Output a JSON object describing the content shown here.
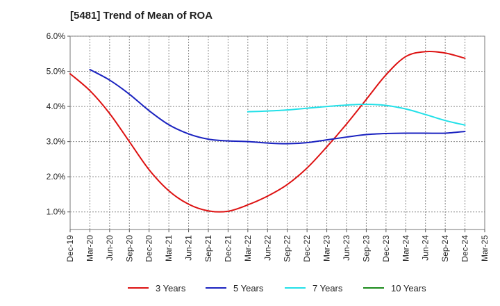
{
  "chart_data": {
    "type": "line",
    "title": "[5481]  Trend of Mean of ROA",
    "xlabel": "",
    "ylabel": "",
    "x_tick_labels": [
      "Dec-19",
      "Mar-20",
      "Jun-20",
      "Sep-20",
      "Dec-20",
      "Mar-21",
      "Jun-21",
      "Sep-21",
      "Dec-21",
      "Mar-22",
      "Jun-22",
      "Sep-22",
      "Dec-22",
      "Mar-23",
      "Jun-23",
      "Sep-23",
      "Dec-23",
      "Mar-24",
      "Jun-24",
      "Sep-24",
      "Dec-24",
      "Mar-25"
    ],
    "y_ticks": [
      "1.0%",
      "2.0%",
      "3.0%",
      "4.0%",
      "5.0%",
      "6.0%"
    ],
    "ylim": [
      0.5,
      6.0
    ],
    "grid": true,
    "legend_position": "bottom",
    "series": [
      {
        "name": "3 Years",
        "color": "#dd1111",
        "values": [
          4.93,
          4.45,
          3.8,
          3.0,
          2.2,
          1.6,
          1.22,
          1.03,
          1.02,
          1.2,
          1.45,
          1.78,
          2.25,
          2.85,
          3.5,
          4.2,
          4.9,
          5.42,
          5.56,
          5.52,
          5.37,
          null
        ]
      },
      {
        "name": "5 Years",
        "color": "#1a22c0",
        "values": [
          null,
          5.05,
          4.75,
          4.35,
          3.88,
          3.48,
          3.22,
          3.07,
          3.02,
          3.0,
          2.96,
          2.94,
          2.97,
          3.05,
          3.13,
          3.2,
          3.23,
          3.24,
          3.24,
          3.24,
          3.29,
          null
        ]
      },
      {
        "name": "7 Years",
        "color": "#22e0e8",
        "values": [
          null,
          null,
          null,
          null,
          null,
          null,
          null,
          null,
          null,
          3.85,
          3.87,
          3.9,
          3.95,
          4.0,
          4.04,
          4.06,
          4.03,
          3.93,
          3.77,
          3.6,
          3.47,
          null
        ]
      },
      {
        "name": "10 Years",
        "color": "#1a8a1a",
        "values": [
          null,
          null,
          null,
          null,
          null,
          null,
          null,
          null,
          null,
          null,
          null,
          null,
          null,
          null,
          null,
          null,
          null,
          null,
          null,
          null,
          null,
          null
        ]
      }
    ]
  }
}
